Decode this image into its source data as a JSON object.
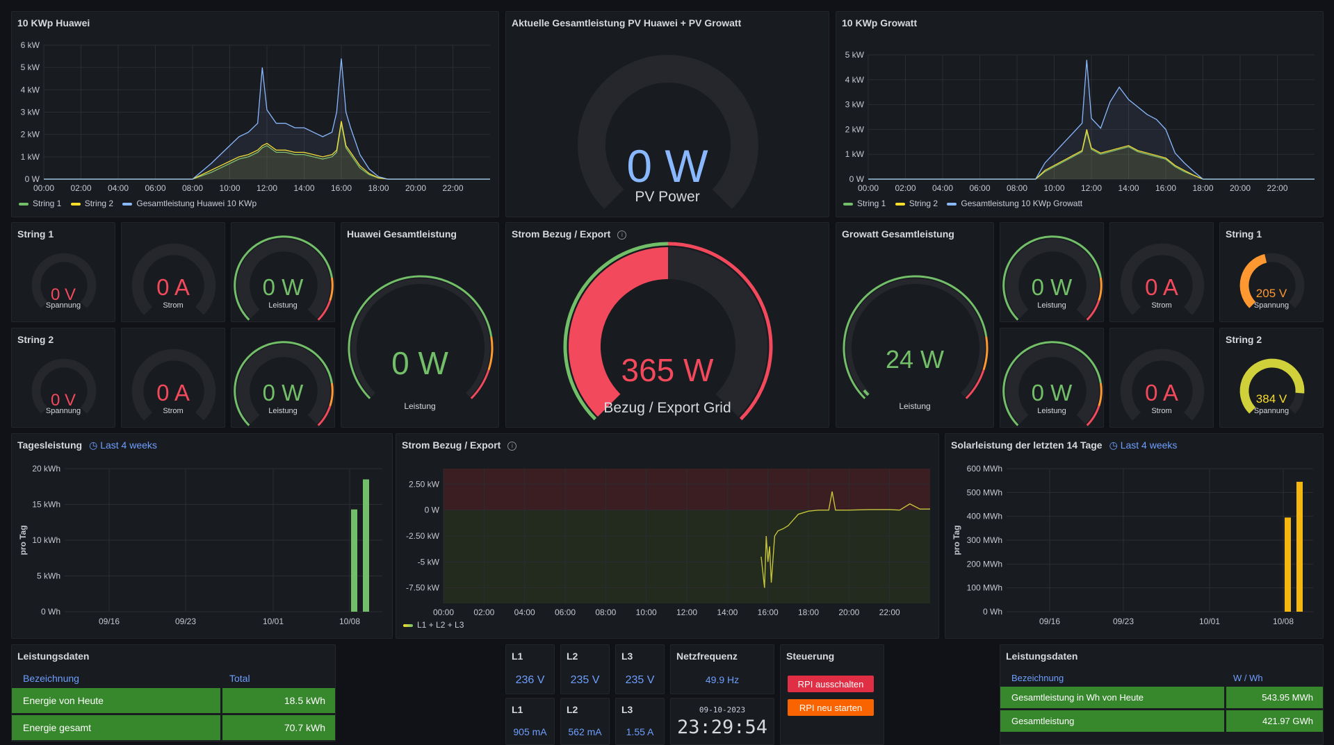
{
  "colors": {
    "green": "#73bf69",
    "yellow": "#fade2a",
    "blue": "#8ab8ff",
    "red": "#f2495c",
    "orange": "#ff9830",
    "link": "#6e9fff",
    "table_green": "#37872d",
    "orange_btn": "#fa6400",
    "red_btn": "#e02f44"
  },
  "huawei_ts": {
    "title": "10 KWp Huawei",
    "chart_data": {
      "type": "line",
      "y_ticks": [
        "0 W",
        "1 kW",
        "2 kW",
        "3 kW",
        "4 kW",
        "5 kW",
        "6 kW"
      ],
      "ylim": [
        0,
        6000
      ],
      "x_ticks": [
        "00:00",
        "02:00",
        "04:00",
        "06:00",
        "08:00",
        "10:00",
        "12:00",
        "14:00",
        "16:00",
        "18:00",
        "20:00",
        "22:00"
      ],
      "x": [
        "08:00",
        "09:00",
        "09:30",
        "10:00",
        "10:30",
        "11:00",
        "11:30",
        "11:45",
        "12:00",
        "12:30",
        "13:00",
        "13:30",
        "14:00",
        "14:30",
        "15:00",
        "15:30",
        "15:45",
        "16:00",
        "16:15",
        "16:30",
        "17:00",
        "17:30",
        "18:00",
        "18:30"
      ],
      "series": [
        {
          "name": "String 1",
          "values": [
            0,
            300,
            500,
            700,
            900,
            1000,
            1200,
            1400,
            1500,
            1200,
            1200,
            1100,
            1100,
            1000,
            900,
            1000,
            1200,
            2500,
            1400,
            1100,
            500,
            200,
            50,
            0
          ]
        },
        {
          "name": "String 2",
          "values": [
            0,
            400,
            600,
            800,
            1000,
            1100,
            1300,
            1500,
            1600,
            1300,
            1300,
            1200,
            1200,
            1100,
            1000,
            1100,
            1300,
            2600,
            1500,
            1200,
            600,
            250,
            60,
            0
          ]
        },
        {
          "name": "Gesamtleistung Huawei 10 KWp",
          "values": [
            0,
            700,
            1100,
            1500,
            1900,
            2100,
            2500,
            5000,
            3100,
            2500,
            2500,
            2300,
            2300,
            2100,
            1900,
            2100,
            3000,
            5400,
            3000,
            2300,
            1100,
            450,
            110,
            0
          ]
        }
      ]
    }
  },
  "total_power": {
    "title": "Aktuelle Gesamtleistung PV Huawei + PV Growatt",
    "value": "0 W",
    "label": "PV Power",
    "fraction": 0
  },
  "growatt_ts": {
    "title": "10 KWp Growatt",
    "chart_data": {
      "type": "line",
      "y_ticks": [
        "0 W",
        "1 kW",
        "2 kW",
        "3 kW",
        "4 kW",
        "5 kW"
      ],
      "ylim": [
        0,
        5000
      ],
      "x_ticks": [
        "00:00",
        "02:00",
        "04:00",
        "06:00",
        "08:00",
        "10:00",
        "12:00",
        "14:00",
        "16:00",
        "18:00",
        "20:00",
        "22:00"
      ],
      "x": [
        "09:00",
        "09:30",
        "10:00",
        "10:30",
        "11:00",
        "11:30",
        "11:45",
        "12:00",
        "12:30",
        "13:00",
        "13:30",
        "14:00",
        "14:30",
        "15:00",
        "15:30",
        "16:00",
        "16:30",
        "17:00",
        "17:30",
        "18:00"
      ],
      "series": [
        {
          "name": "String 1",
          "values": [
            0,
            300,
            500,
            700,
            900,
            1100,
            1900,
            1200,
            1000,
            1100,
            1200,
            1300,
            1100,
            1000,
            900,
            800,
            500,
            300,
            150,
            0
          ]
        },
        {
          "name": "String 2",
          "values": [
            0,
            350,
            550,
            750,
            950,
            1150,
            2000,
            1250,
            1050,
            1150,
            1250,
            1350,
            1150,
            1050,
            950,
            850,
            550,
            350,
            160,
            0
          ]
        },
        {
          "name": "Gesamtleistung 10 KWp Growatt",
          "values": [
            0,
            650,
            1050,
            1450,
            1850,
            2250,
            4800,
            2450,
            2050,
            3100,
            3700,
            3200,
            2900,
            2600,
            2400,
            2000,
            1050,
            650,
            310,
            0
          ]
        }
      ]
    }
  },
  "hw_gauges": {
    "row1": {
      "title": "String 1",
      "v": "0 V",
      "v_label": "Spannung",
      "a": "0 A",
      "a_label": "Strom",
      "w": "0 W",
      "w_label": "Leistung"
    },
    "row2": {
      "title": "String 2",
      "v": "0 V",
      "v_label": "Spannung",
      "a": "0 A",
      "a_label": "Strom",
      "w": "0 W",
      "w_label": "Leistung"
    }
  },
  "huawei_total": {
    "title": "Huawei Gesamtleistung",
    "value": "0 W",
    "label": "Leistung",
    "fraction": 0
  },
  "grid_gauge": {
    "title": "Strom Bezug / Export",
    "value": "365 W",
    "label": "Bezug / Export Grid",
    "fraction": 0.5
  },
  "growatt_total": {
    "title": "Growatt Gesamtleistung",
    "value": "24 W",
    "label": "Leistung",
    "fraction": 0.02
  },
  "gw_gauges": {
    "row1": {
      "w": "0 W",
      "w_label": "Leistung",
      "a": "0 A",
      "a_label": "Strom",
      "title": "String 1",
      "v": "205 V",
      "v_label": "Spannung",
      "v_fraction": 0.45
    },
    "row2": {
      "w": "0 W",
      "w_label": "Leistung",
      "a": "0 A",
      "a_label": "Strom",
      "title": "String 2",
      "v": "384 V",
      "v_label": "Spannung",
      "v_fraction": 0.85
    }
  },
  "daily": {
    "title": "Tagesleistung",
    "range": "Last 4 weeks",
    "chart_data": {
      "type": "bar",
      "ylabel": "pro Tag",
      "y_ticks": [
        "0 Wh",
        "5 kWh",
        "10 kWh",
        "15 kWh",
        "20 kWh"
      ],
      "ylim": [
        0,
        20000
      ],
      "x_ticks": [
        "09/16",
        "09/23",
        "10/01",
        "10/08"
      ],
      "categories": [
        "10/08",
        "10/09"
      ],
      "values": [
        14300,
        18500
      ]
    }
  },
  "grid_ts": {
    "title": "Strom Bezug / Export",
    "chart_data": {
      "type": "line",
      "y_ticks": [
        "-7.50 kW",
        "-5 kW",
        "-2.50 kW",
        "0 W",
        "2.50 kW"
      ],
      "ylim": [
        -9000,
        4000
      ],
      "x_ticks": [
        "00:00",
        "02:00",
        "04:00",
        "06:00",
        "08:00",
        "10:00",
        "12:00",
        "14:00",
        "16:00",
        "18:00",
        "20:00",
        "22:00"
      ],
      "x": [
        "15:40",
        "15:50",
        "15:55",
        "16:00",
        "16:05",
        "16:10",
        "16:20",
        "16:30",
        "16:45",
        "17:00",
        "17:30",
        "18:00",
        "18:30",
        "19:00",
        "19:10",
        "19:20",
        "20:00",
        "21:00",
        "22:00",
        "22:30",
        "23:00",
        "23:30"
      ],
      "series": [
        {
          "name": "L1 + L2 + L3",
          "values": [
            -4500,
            -7500,
            -2500,
            -5000,
            -3500,
            -7000,
            -2500,
            -2000,
            -1800,
            -1500,
            -400,
            -100,
            0,
            0,
            1800,
            0,
            0,
            50,
            50,
            0,
            600,
            100
          ]
        }
      ]
    }
  },
  "solar14": {
    "title": "Solarleistung der letzten 14 Tage",
    "range": "Last 4 weeks",
    "chart_data": {
      "type": "bar",
      "ylabel": "pro Tag",
      "y_ticks": [
        "0 Wh",
        "100 MWh",
        "200 MWh",
        "300 MWh",
        "400 MWh",
        "500 MWh",
        "600 MWh"
      ],
      "ylim": [
        0,
        600
      ],
      "x_ticks": [
        "09/16",
        "09/23",
        "10/01",
        "10/08"
      ],
      "categories": [
        "10/08",
        "10/09"
      ],
      "values": [
        395,
        545
      ]
    }
  },
  "leistung_left": {
    "title": "Leistungsdaten",
    "headers": [
      "Bezeichnung",
      "Total"
    ],
    "rows": [
      [
        "Energie von Heute",
        "18.5 kWh"
      ],
      [
        "Energie gesamt",
        "70.7 kWh"
      ]
    ]
  },
  "phases": {
    "v": [
      {
        "name": "L1",
        "value": "236 V"
      },
      {
        "name": "L2",
        "value": "235 V"
      },
      {
        "name": "L3",
        "value": "235 V"
      }
    ],
    "a": [
      {
        "name": "L1",
        "value": "905 mA"
      },
      {
        "name": "L2",
        "value": "562 mA"
      },
      {
        "name": "L3",
        "value": "1.55 A"
      }
    ]
  },
  "netz": {
    "title": "Netzfrequenz",
    "value": "49.9 Hz"
  },
  "clock": {
    "date": "09-10-2023",
    "time": "23:29:54"
  },
  "steuerung": {
    "title": "Steuerung",
    "btn_off": "RPI ausschalten",
    "btn_restart": "RPI neu starten"
  },
  "leistung_right": {
    "title": "Leistungsdaten",
    "headers": [
      "Bezeichnung",
      "W / Wh"
    ],
    "rows": [
      [
        "Gesamtleistung in Wh von Heute",
        "543.95 MWh"
      ],
      [
        "Gesamtleistung",
        "421.97 GWh"
      ]
    ]
  }
}
